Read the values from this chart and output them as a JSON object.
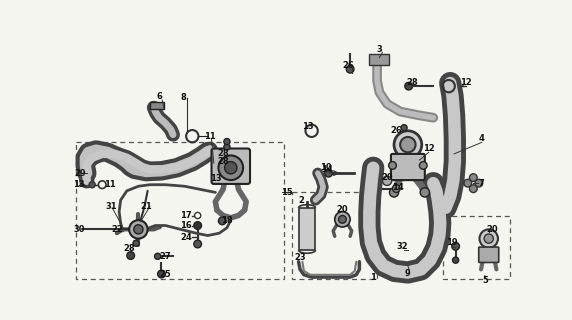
{
  "bg_color": "#f5f5f0",
  "lc": "#222222",
  "fig_w": 5.72,
  "fig_h": 3.2,
  "dpi": 100
}
